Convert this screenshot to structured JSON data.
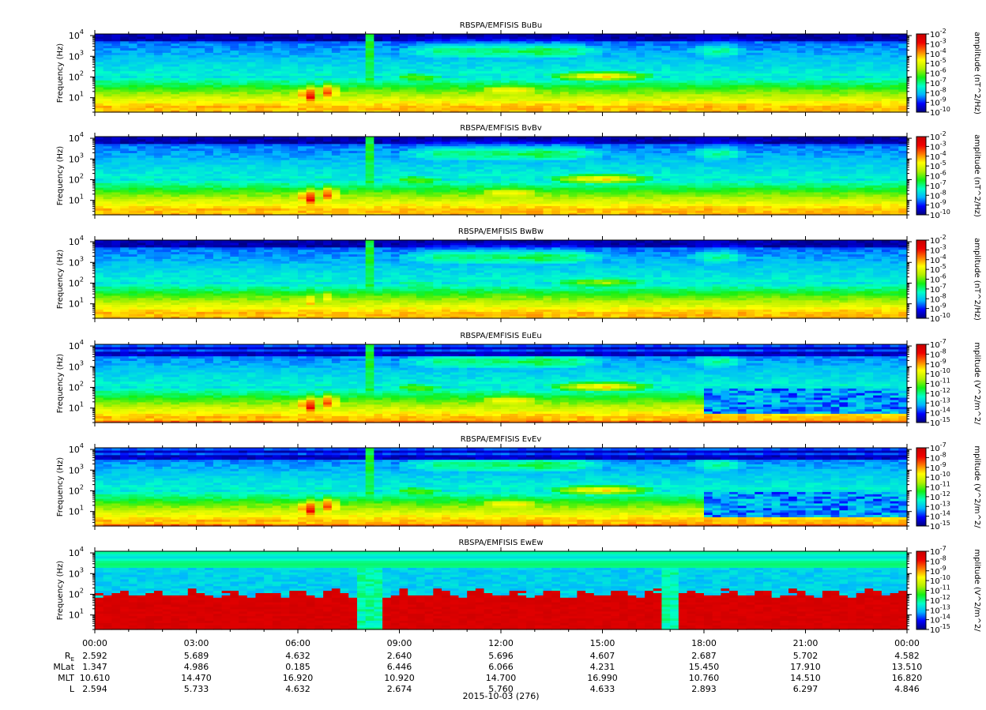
{
  "figure": {
    "date_label": "2015-10-03 (276)"
  },
  "chart_data": {
    "type": "heatmap",
    "x_axis": {
      "range_hours": [
        0,
        24
      ],
      "tick_labels": [
        "00:00",
        "03:00",
        "06:00",
        "09:00",
        "12:00",
        "15:00",
        "18:00",
        "21:00",
        "00:00"
      ]
    },
    "y_axis": {
      "label": "Frequency (Hz)",
      "scale": "log",
      "range_hz": [
        2,
        12000
      ],
      "tick_exponents": [
        1,
        2,
        3,
        4
      ]
    },
    "colormap": [
      "#00007f",
      "#0000ff",
      "#00b4ff",
      "#00ffc8",
      "#14f014",
      "#b4f000",
      "#ffff00",
      "#ff7800",
      "#f00000",
      "#c80000"
    ],
    "panels": [
      {
        "title": "RBSPA/EMFISIS  BuBu",
        "colorbar_label": "amplitude (nT^2/Hz)",
        "colorbar_exponents": [
          -10,
          -9,
          -8,
          -7,
          -6,
          -5,
          -4,
          -3,
          -2
        ],
        "kind": "B",
        "strength": 1.0
      },
      {
        "title": "RBSPA/EMFISIS  BvBv",
        "colorbar_label": "amplitude (nT^2/Hz)",
        "colorbar_exponents": [
          -10,
          -9,
          -8,
          -7,
          -6,
          -5,
          -4,
          -3,
          -2
        ],
        "kind": "B",
        "strength": 1.0
      },
      {
        "title": "RBSPA/EMFISIS  BwBw",
        "colorbar_label": "amplitude (nT^2/Hz)",
        "colorbar_exponents": [
          -10,
          -9,
          -8,
          -7,
          -6,
          -5,
          -4,
          -3,
          -2
        ],
        "kind": "B",
        "strength": 0.8
      },
      {
        "title": "RBSPA/EMFISIS  EuEu",
        "colorbar_label": "mplitude (V^2/m^2/",
        "colorbar_exponents": [
          -15,
          -14,
          -13,
          -12,
          -11,
          -10,
          -9,
          -8,
          -7
        ],
        "kind": "E",
        "strength": 1.0
      },
      {
        "title": "RBSPA/EMFISIS  EvEv",
        "colorbar_label": "mplitude (V^2/m^2/",
        "colorbar_exponents": [
          -15,
          -14,
          -13,
          -12,
          -11,
          -10,
          -9,
          -8,
          -7
        ],
        "kind": "E",
        "strength": 1.0
      },
      {
        "title": "RBSPA/EMFISIS  EwEw",
        "colorbar_label": "mplitude (V^2/m^2/",
        "colorbar_exponents": [
          -15,
          -14,
          -13,
          -12,
          -11,
          -10,
          -9,
          -8,
          -7
        ],
        "kind": "Ew",
        "strength": 1.0
      }
    ],
    "ephemeris": [
      {
        "label": "RE",
        "values": [
          "2.592",
          "5.689",
          "4.632",
          "2.640",
          "5.696",
          "4.607",
          "2.687",
          "5.702",
          "4.582"
        ]
      },
      {
        "label": "MLat",
        "values": [
          "1.347",
          "4.986",
          "0.185",
          "6.446",
          "6.066",
          "4.231",
          "15.450",
          "17.910",
          "13.510"
        ]
      },
      {
        "label": "MLT",
        "values": [
          "10.610",
          "14.470",
          "16.920",
          "10.920",
          "14.700",
          "16.990",
          "10.760",
          "14.510",
          "16.820"
        ]
      },
      {
        "label": "L",
        "values": [
          "2.594",
          "5.733",
          "4.632",
          "2.674",
          "5.760",
          "4.633",
          "2.893",
          "6.297",
          "4.846"
        ]
      }
    ]
  }
}
